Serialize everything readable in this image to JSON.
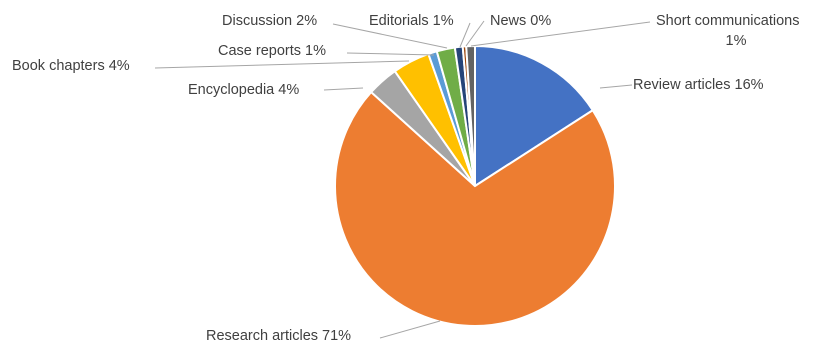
{
  "chart_data": {
    "type": "pie",
    "title": "",
    "start_angle_deg": 0,
    "direction": "clockwise",
    "legend": "none",
    "slices": [
      {
        "label": "Review articles",
        "value": 15.9,
        "display": "16%",
        "color": "#4472c4"
      },
      {
        "label": "Research articles",
        "value": 70.8,
        "display": "71%",
        "color": "#ed7d31"
      },
      {
        "label": "Encyclopedia",
        "value": 3.6,
        "display": "4%",
        "color": "#a5a5a5"
      },
      {
        "label": "Book chapters",
        "value": 4.3,
        "display": "4%",
        "color": "#ffc000"
      },
      {
        "label": "Case reports",
        "value": 1.0,
        "display": "1%",
        "color": "#5b9bd5"
      },
      {
        "label": "Discussion",
        "value": 2.1,
        "display": "2%",
        "color": "#70ad47"
      },
      {
        "label": "Editorials",
        "value": 0.9,
        "display": "1%",
        "color": "#264478"
      },
      {
        "label": "News",
        "value": 0.4,
        "display": "0%",
        "color": "#9e480e"
      },
      {
        "label": "Short communications",
        "value": 1.0,
        "display": "1%",
        "color": "#636363"
      }
    ],
    "label_lines": [
      [
        "Review articles  16%"
      ],
      [
        "Research articles  71%"
      ],
      [
        "Encyclopedia  4%"
      ],
      [
        "Book chapters  4%"
      ],
      [
        "Case reports  1%"
      ],
      [
        "Discussion 2%"
      ],
      [
        "Editorials 1%"
      ],
      [
        "News 0%"
      ],
      [
        "Short communications",
        "1%"
      ]
    ]
  }
}
